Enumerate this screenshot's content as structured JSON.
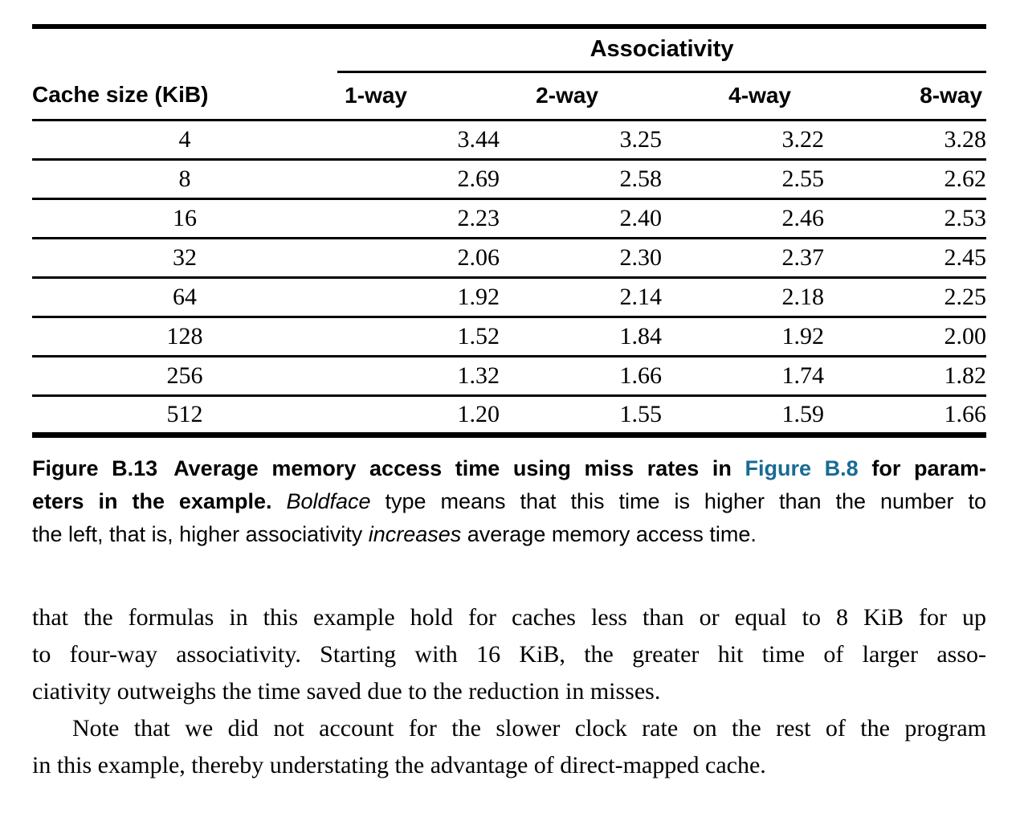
{
  "colors": {
    "link": "#186b94",
    "text": "#000000",
    "background": "#ffffff"
  },
  "table": {
    "group_header": "Associativity",
    "row_header_label": "Cache size (KiB)",
    "way_columns": [
      "1-way",
      "2-way",
      "4-way",
      "8-way"
    ],
    "rows": [
      {
        "size": "4",
        "values": [
          "3.44",
          "3.25",
          "3.22",
          "3.28"
        ],
        "bold": [
          false,
          false,
          false,
          true
        ]
      },
      {
        "size": "8",
        "values": [
          "2.69",
          "2.58",
          "2.55",
          "2.62"
        ],
        "bold": [
          false,
          false,
          false,
          true
        ]
      },
      {
        "size": "16",
        "values": [
          "2.23",
          "2.40",
          "2.46",
          "2.53"
        ],
        "bold": [
          false,
          true,
          true,
          true
        ]
      },
      {
        "size": "32",
        "values": [
          "2.06",
          "2.30",
          "2.37",
          "2.45"
        ],
        "bold": [
          false,
          true,
          true,
          true
        ]
      },
      {
        "size": "64",
        "values": [
          "1.92",
          "2.14",
          "2.18",
          "2.25"
        ],
        "bold": [
          false,
          true,
          true,
          true
        ]
      },
      {
        "size": "128",
        "values": [
          "1.52",
          "1.84",
          "1.92",
          "2.00"
        ],
        "bold": [
          false,
          true,
          true,
          true
        ]
      },
      {
        "size": "256",
        "values": [
          "1.32",
          "1.66",
          "1.74",
          "1.82"
        ],
        "bold": [
          false,
          true,
          true,
          true
        ]
      },
      {
        "size": "512",
        "values": [
          "1.20",
          "1.55",
          "1.59",
          "1.66"
        ],
        "bold": [
          false,
          true,
          true,
          true
        ]
      }
    ]
  },
  "caption": {
    "figure_label": "Figure B.13",
    "link_text": "Figure B.8",
    "lines": [
      {
        "justify": true,
        "segments": [
          {
            "text": "Figure B.13",
            "style": "bold-label"
          },
          {
            "text": "Average memory access time using miss rates in ",
            "style": "bold"
          },
          {
            "text": "Figure B.8",
            "style": "bold-link"
          },
          {
            "text": " for param-",
            "style": "bold"
          }
        ]
      },
      {
        "justify": true,
        "segments": [
          {
            "text": "eters in the example. ",
            "style": "bold"
          },
          {
            "text": "Boldface",
            "style": "italic"
          },
          {
            "text": " type means that this time is higher than the number to",
            "style": "regular"
          }
        ]
      },
      {
        "justify": false,
        "segments": [
          {
            "text": "the left, that is, higher associativity ",
            "style": "regular"
          },
          {
            "text": "increases",
            "style": "italic"
          },
          {
            "text": " average memory access time.",
            "style": "regular"
          }
        ]
      }
    ]
  },
  "body": {
    "paragraphs": [
      {
        "indent_first_line": false,
        "lines": [
          {
            "text": "that the formulas in this example hold for caches less than or equal to 8 KiB for up",
            "justify": true
          },
          {
            "text": "to four-way associativity. Starting with 16 KiB, the greater hit time of larger asso-",
            "justify": true
          },
          {
            "text": "ciativity outweighs the time saved due to the reduction in misses.",
            "justify": false
          }
        ]
      },
      {
        "indent_first_line": true,
        "lines": [
          {
            "text": "Note that we did not account for the slower clock rate on the rest of the program",
            "justify": true
          },
          {
            "text": "in this example, thereby understating the advantage of direct-mapped cache.",
            "justify": false
          }
        ]
      }
    ]
  }
}
